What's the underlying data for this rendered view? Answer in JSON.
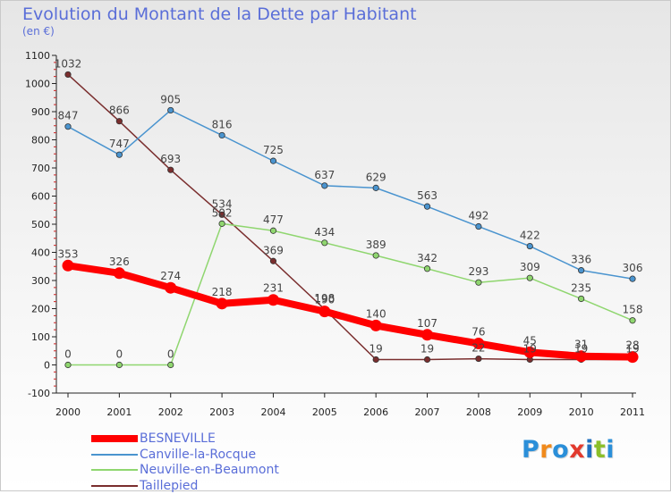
{
  "title": "Evolution du Montant de la Dette par Habitant",
  "subtitle": "(en €)",
  "brand": {
    "letters": [
      "P",
      "r",
      "o",
      "x",
      "i",
      "t",
      "i"
    ],
    "colors": [
      "#2b8fd9",
      "#f08a1c",
      "#2b8fd9",
      "#e23a2e",
      "#1f6fbf",
      "#8bbf2a",
      "#2b8fd9"
    ]
  },
  "chart_data": {
    "type": "line",
    "title": "Evolution du Montant de la Dette par Habitant",
    "ylabel": "(en €)",
    "xlabel": "",
    "categories": [
      "2000",
      "2001",
      "2002",
      "2003",
      "2004",
      "2005",
      "2006",
      "2007",
      "2008",
      "2009",
      "2010",
      "2011"
    ],
    "ylim": [
      -100,
      1100
    ],
    "yticks": [
      "-100",
      "0",
      "100",
      "200",
      "300",
      "400",
      "500",
      "600",
      "700",
      "800",
      "900",
      "1000",
      "1100"
    ],
    "series": [
      {
        "name": "BESNEVILLE",
        "color": "#ff0000",
        "values": [
          353,
          326,
          274,
          218,
          231,
          190,
          140,
          107,
          76,
          45,
          31,
          28
        ],
        "labels": [
          "353",
          "326",
          "274",
          "218",
          "231",
          "190",
          "140",
          "107",
          "76",
          "45",
          "31",
          "28"
        ]
      },
      {
        "name": "Canville-la-Rocque",
        "color": "#4a94cf",
        "values": [
          847,
          747,
          905,
          816,
          725,
          637,
          629,
          563,
          492,
          422,
          336,
          306
        ],
        "labels": [
          "847",
          "747",
          "905",
          "816",
          "725",
          "637",
          "629",
          "563",
          "492",
          "422",
          "336",
          "306"
        ]
      },
      {
        "name": "Neuville-en-Beaumont",
        "color": "#8fd66f",
        "values": [
          0,
          0,
          0,
          502,
          477,
          434,
          389,
          342,
          293,
          309,
          235,
          158
        ],
        "labels": [
          "0",
          "0",
          "0",
          "502",
          "477",
          "434",
          "389",
          "342",
          "293",
          "309",
          "235",
          "158"
        ]
      },
      {
        "name": "Taillepied",
        "color": "#7a2e2e",
        "values": [
          1032,
          866,
          693,
          534,
          369,
          198,
          19,
          19,
          22,
          19,
          19,
          19
        ],
        "labels": [
          "1032",
          "866",
          "693",
          "534",
          "369",
          "198",
          "19",
          "19",
          "22",
          "19",
          "19",
          "19"
        ]
      }
    ]
  }
}
